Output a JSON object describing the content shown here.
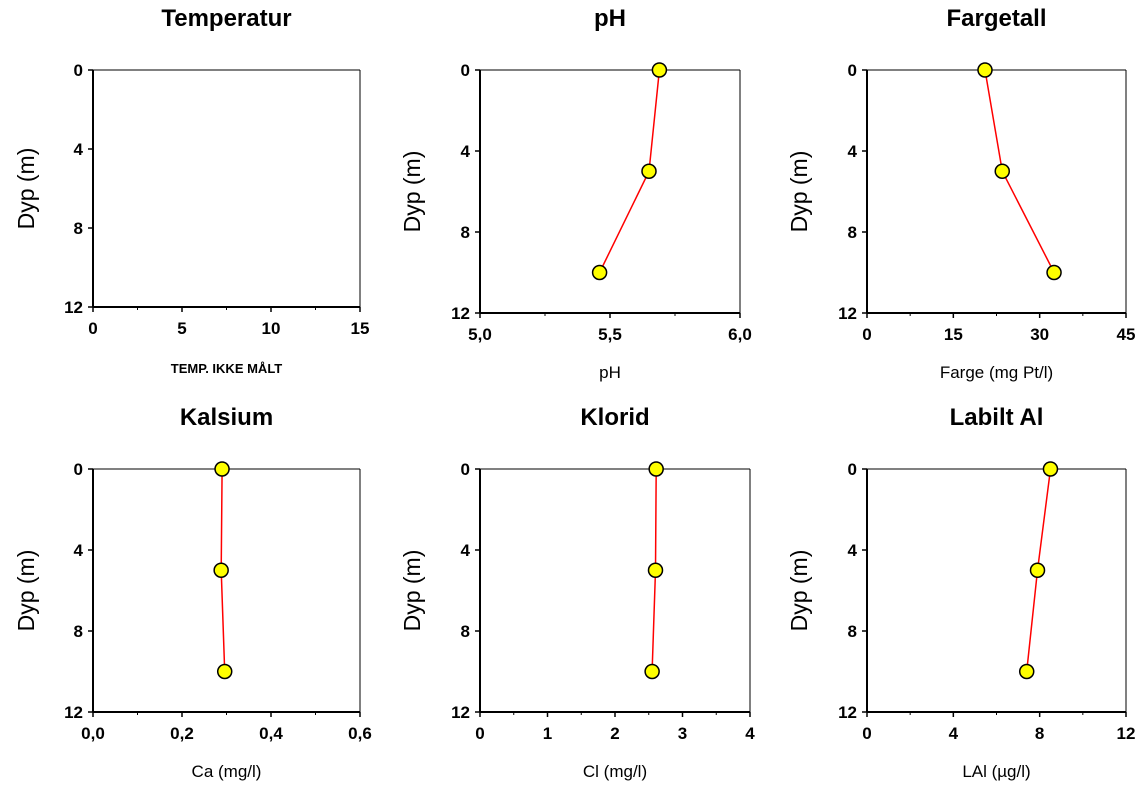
{
  "chart_data": [
    {
      "type": "line",
      "title": "Temperatur",
      "xlabel": "TEMP. IKKE MÅLT",
      "ylabel": "Dyp (m)",
      "xlim": [
        0,
        15
      ],
      "ylim": [
        0,
        12
      ],
      "y_inverted": true,
      "x_ticks": [
        "0",
        "5",
        "10",
        "15"
      ],
      "y_ticks": [
        "0",
        "4",
        "8",
        "12"
      ],
      "series": [
        {
          "points": []
        }
      ]
    },
    {
      "type": "line",
      "title": "pH",
      "xlabel": "pH",
      "ylabel": "Dyp (m)",
      "xlim": [
        5.0,
        6.0
      ],
      "ylim": [
        0,
        12
      ],
      "y_inverted": true,
      "x_ticks": [
        "5,0",
        "5,5",
        "6,0"
      ],
      "y_ticks": [
        "0",
        "4",
        "8",
        "12"
      ],
      "series": [
        {
          "points": [
            {
              "x": 5.69,
              "y": 0
            },
            {
              "x": 5.65,
              "y": 5
            },
            {
              "x": 5.46,
              "y": 10
            }
          ]
        }
      ]
    },
    {
      "type": "line",
      "title": "Fargetall",
      "xlabel": "Farge (mg Pt/l)",
      "ylabel": "Dyp (m)",
      "xlim": [
        0,
        45
      ],
      "ylim": [
        0,
        12
      ],
      "y_inverted": true,
      "x_ticks": [
        "0",
        "15",
        "30",
        "45"
      ],
      "y_ticks": [
        "0",
        "4",
        "8",
        "12"
      ],
      "series": [
        {
          "points": [
            {
              "x": 20.5,
              "y": 0
            },
            {
              "x": 23.5,
              "y": 5
            },
            {
              "x": 32.5,
              "y": 10
            }
          ]
        }
      ]
    },
    {
      "type": "line",
      "title": "Kalsium",
      "xlabel": "Ca (mg/l)",
      "ylabel": "Dyp (m)",
      "xlim": [
        0.0,
        0.6
      ],
      "ylim": [
        0,
        12
      ],
      "y_inverted": true,
      "x_ticks": [
        "0,0",
        "0,2",
        "0,4",
        "0,6"
      ],
      "y_ticks": [
        "0",
        "4",
        "8",
        "12"
      ],
      "series": [
        {
          "points": [
            {
              "x": 0.29,
              "y": 0
            },
            {
              "x": 0.288,
              "y": 5
            },
            {
              "x": 0.296,
              "y": 10
            }
          ]
        }
      ]
    },
    {
      "type": "line",
      "title": "Klorid",
      "xlabel": "Cl (mg/l)",
      "ylabel": "Dyp (m)",
      "xlim": [
        0,
        4
      ],
      "ylim": [
        0,
        12
      ],
      "y_inverted": true,
      "x_ticks": [
        "0",
        "1",
        "2",
        "3",
        "4"
      ],
      "y_ticks": [
        "0",
        "4",
        "8",
        "12"
      ],
      "series": [
        {
          "points": [
            {
              "x": 2.61,
              "y": 0
            },
            {
              "x": 2.6,
              "y": 5
            },
            {
              "x": 2.55,
              "y": 10
            }
          ]
        }
      ]
    },
    {
      "type": "line",
      "title": "Labilt Al",
      "xlabel": "LAl (µg/l)",
      "ylabel": "Dyp (m)",
      "xlim": [
        0,
        12
      ],
      "ylim": [
        0,
        12
      ],
      "y_inverted": true,
      "x_ticks": [
        "0",
        "4",
        "8",
        "12"
      ],
      "y_ticks": [
        "0",
        "4",
        "8",
        "12"
      ],
      "series": [
        {
          "points": [
            {
              "x": 8.5,
              "y": 0
            },
            {
              "x": 7.9,
              "y": 5
            },
            {
              "x": 7.4,
              "y": 10
            }
          ]
        }
      ]
    }
  ],
  "colors": {
    "line": "#ff0000",
    "marker_fill": "#ffff00",
    "marker_stroke": "#000000",
    "axis": "#000000"
  }
}
